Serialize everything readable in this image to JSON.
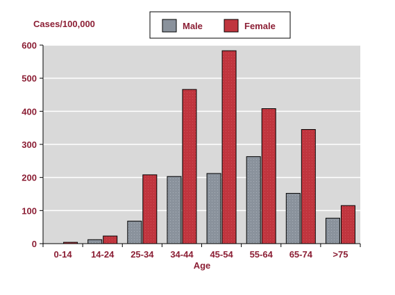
{
  "chart_data": {
    "type": "bar",
    "ylabel": "Cases/100,000",
    "xlabel": "Age",
    "categories": [
      "0-14",
      "14-24",
      "25-34",
      "34-44",
      "45-54",
      "55-64",
      "65-74",
      ">75"
    ],
    "series": [
      {
        "name": "Male",
        "color": "#8a929c",
        "values": [
          0,
          12,
          68,
          203,
          212,
          263,
          152,
          77
        ]
      },
      {
        "name": "Female",
        "color": "#c0353e",
        "values": [
          4,
          23,
          208,
          466,
          583,
          408,
          345,
          115
        ]
      }
    ],
    "ylim": [
      0,
      600
    ],
    "yticks": [
      0,
      100,
      200,
      300,
      400,
      500,
      600
    ],
    "grid": true,
    "legend_position": "top-center"
  },
  "colors": {
    "text": "#8b1e34",
    "plot_background": "#d9d9d9",
    "gridline": "#ffffff"
  }
}
